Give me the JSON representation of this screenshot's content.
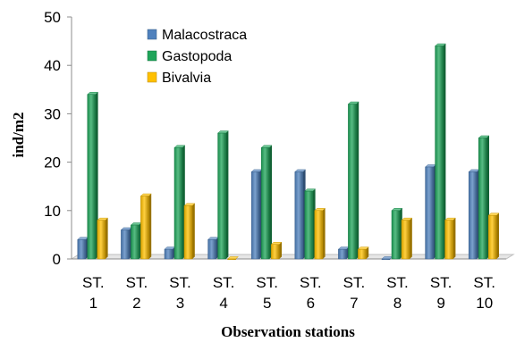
{
  "chart_data": {
    "type": "bar",
    "title": "",
    "xlabel": "Observation stations",
    "ylabel": "ind/m2",
    "ylim": [
      0,
      50
    ],
    "yticks": [
      0,
      10,
      20,
      30,
      40,
      50
    ],
    "categories": [
      [
        "ST.",
        "1"
      ],
      [
        "ST.",
        "2"
      ],
      [
        "ST.",
        "3"
      ],
      [
        "ST.",
        "4"
      ],
      [
        "ST.",
        "5"
      ],
      [
        "ST.",
        "6"
      ],
      [
        "ST.",
        "7"
      ],
      [
        "ST.",
        "8"
      ],
      [
        "ST.",
        "9"
      ],
      [
        "ST.",
        "10"
      ]
    ],
    "series": [
      {
        "name": "Malacostraca",
        "color": "#4F81BD",
        "values": [
          4,
          6,
          2,
          4,
          18,
          18,
          2,
          0,
          19,
          18
        ]
      },
      {
        "name": "Gastopoda",
        "color": "#1FA55A",
        "values": [
          34,
          7,
          23,
          26,
          23,
          14,
          32,
          10,
          44,
          25
        ]
      },
      {
        "name": "Bivalvia",
        "color": "#FFC000",
        "values": [
          8,
          13,
          11,
          0,
          3,
          10,
          2,
          8,
          8,
          9
        ]
      }
    ],
    "grid": false,
    "legend": "top-left inside plot"
  }
}
